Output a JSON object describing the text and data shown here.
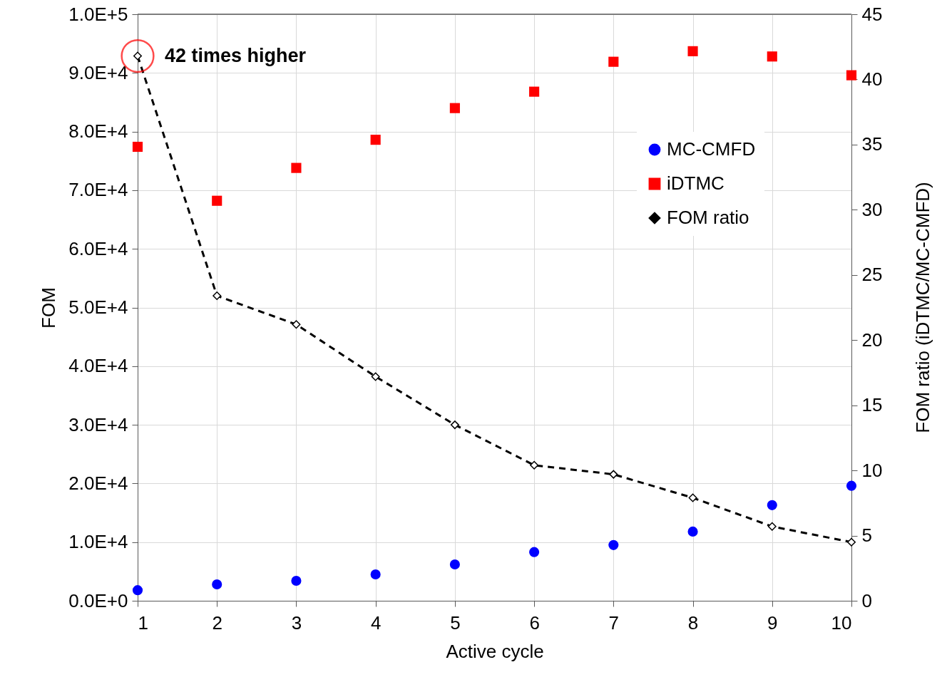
{
  "chart_data": {
    "type": "scatter",
    "xlabel": "Active cycle",
    "ylabel": "FOM",
    "y2label": "FOM ratio (iDTMC/MC-CMFD)",
    "x": [
      1,
      2,
      3,
      4,
      5,
      6,
      7,
      8,
      9,
      10
    ],
    "xlim": [
      1,
      10
    ],
    "xticks": [
      1,
      2,
      3,
      4,
      5,
      6,
      7,
      8,
      9,
      10
    ],
    "ylim": [
      0,
      100000
    ],
    "yticks": [
      {
        "value": 0,
        "label": "0.0E+0"
      },
      {
        "value": 10000,
        "label": "1.0E+4"
      },
      {
        "value": 20000,
        "label": "2.0E+4"
      },
      {
        "value": 30000,
        "label": "3.0E+4"
      },
      {
        "value": 40000,
        "label": "4.0E+4"
      },
      {
        "value": 50000,
        "label": "5.0E+4"
      },
      {
        "value": 60000,
        "label": "6.0E+4"
      },
      {
        "value": 70000,
        "label": "7.0E+4"
      },
      {
        "value": 80000,
        "label": "8.0E+4"
      },
      {
        "value": 90000,
        "label": "9.0E+4"
      },
      {
        "value": 100000,
        "label": "1.0E+5"
      }
    ],
    "y2lim": [
      0,
      45
    ],
    "y2ticks": [
      0,
      5,
      10,
      15,
      20,
      25,
      30,
      35,
      40,
      45
    ],
    "grid": true,
    "legend": "right",
    "series": [
      {
        "name": "MC-CMFD",
        "color": "#0000ff",
        "marker": "circle",
        "values": [
          1800,
          2800,
          3400,
          4500,
          6200,
          8300,
          9500,
          11800,
          16300,
          19600
        ]
      },
      {
        "name": "iDTMC",
        "color": "#ff0000",
        "marker": "square",
        "values": [
          77400,
          68200,
          73800,
          78600,
          84000,
          86800,
          91900,
          93700,
          92800,
          89600
        ]
      },
      {
        "name": "FOM ratio",
        "color": "#000000",
        "type": "line",
        "axis": "y2",
        "marker": "diamond",
        "line_style": "dashed",
        "values": [
          41.8,
          23.4,
          21.2,
          17.2,
          13.5,
          10.4,
          9.7,
          7.9,
          5.7,
          4.5
        ]
      }
    ],
    "annotations": [
      "42 times higher"
    ]
  }
}
